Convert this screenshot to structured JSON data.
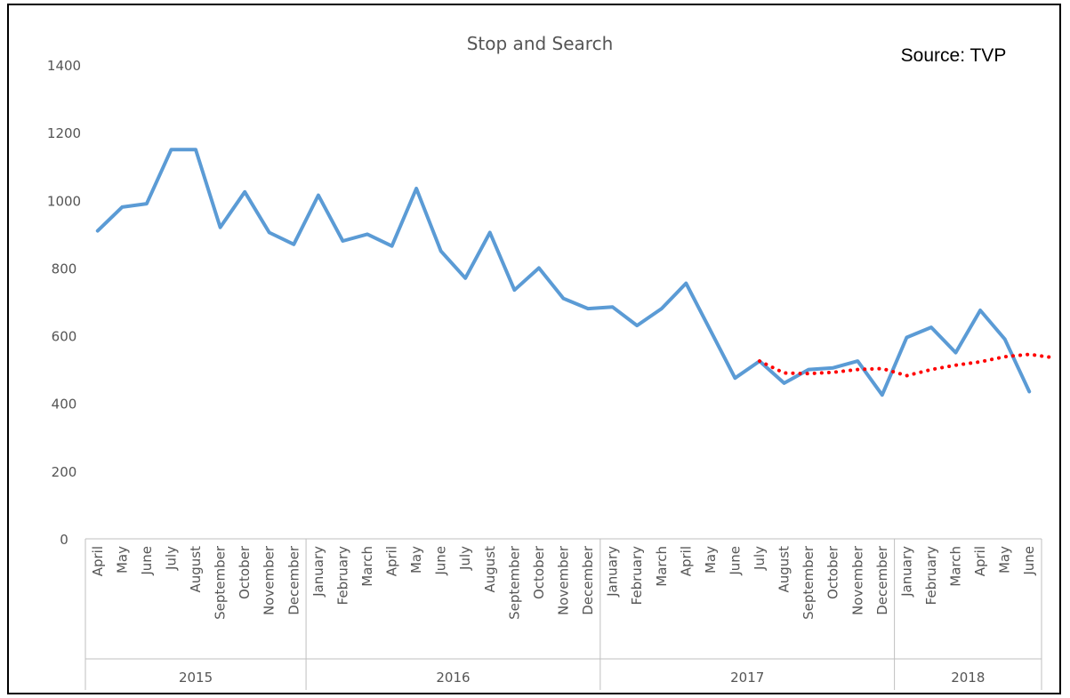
{
  "chart_data": {
    "type": "line",
    "title": "Stop and Search",
    "annotation": "Source: TVP",
    "xlabel": "",
    "ylabel": "",
    "ylim": [
      0,
      1400
    ],
    "yticks": [
      0,
      200,
      400,
      600,
      800,
      1000,
      1200,
      1400
    ],
    "grid": false,
    "legend": "none",
    "groups": [
      {
        "label": "2015",
        "months": [
          "April",
          "May",
          "June",
          "July",
          "August",
          "September",
          "October",
          "November",
          "December"
        ]
      },
      {
        "label": "2016",
        "months": [
          "January",
          "February",
          "March",
          "April",
          "May",
          "June",
          "July",
          "August",
          "September",
          "October",
          "November",
          "December"
        ]
      },
      {
        "label": "2017",
        "months": [
          "January",
          "February",
          "March",
          "April",
          "May",
          "June",
          "July",
          "August",
          "September",
          "October",
          "November",
          "December"
        ]
      },
      {
        "label": "2018",
        "months": [
          "January",
          "February",
          "March",
          "April",
          "May",
          "June"
        ]
      }
    ],
    "series": [
      {
        "color": "#5b9bd5",
        "style": "solid",
        "values": [
          910,
          980,
          990,
          1150,
          1150,
          920,
          1025,
          905,
          870,
          1015,
          880,
          900,
          865,
          1035,
          850,
          770,
          905,
          735,
          800,
          710,
          680,
          685,
          630,
          680,
          755,
          615,
          475,
          525,
          460,
          500,
          505,
          525,
          425,
          595,
          625,
          550,
          675,
          590,
          435
        ]
      },
      {
        "color": "#ff0000",
        "style": "dotted",
        "start_index": 27,
        "values": [
          525,
          490,
          488,
          492,
          500,
          503,
          482,
          500,
          513,
          523,
          538,
          545,
          535
        ]
      }
    ]
  }
}
